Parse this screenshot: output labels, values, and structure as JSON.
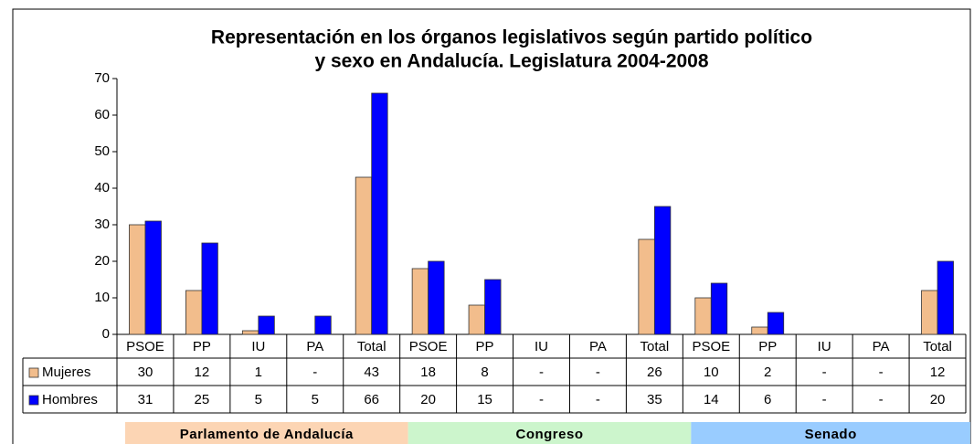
{
  "chart_data": {
    "type": "bar",
    "title": [
      "Representación en los órganos legislativos según partido político",
      "y sexo en Andalucía. Legislatura 2004-2008"
    ],
    "categories": [
      "PSOE",
      "PP",
      "IU",
      "PA",
      "Total",
      "PSOE",
      "PP",
      "IU",
      "PA",
      "Total",
      "PSOE",
      "PP",
      "IU",
      "PA",
      "Total"
    ],
    "series": [
      {
        "name": "Mujeres",
        "color": "#f2bd8c",
        "values": [
          30,
          12,
          1,
          null,
          43,
          18,
          8,
          null,
          null,
          26,
          10,
          2,
          null,
          null,
          12
        ],
        "value_labels": [
          null,
          null,
          null,
          "-",
          null,
          null,
          null,
          "-",
          "-",
          null,
          null,
          null,
          "-",
          "-",
          null
        ]
      },
      {
        "name": "Hombres",
        "color": "#0000ff",
        "values": [
          31,
          25,
          5,
          5,
          66,
          20,
          15,
          null,
          null,
          35,
          14,
          6,
          null,
          null,
          20
        ],
        "value_labels": [
          null,
          null,
          null,
          null,
          null,
          null,
          null,
          "-",
          "-",
          null,
          null,
          null,
          "-",
          "-",
          null
        ]
      }
    ],
    "groups": [
      {
        "label": "Parlamento de Andalucía",
        "color": "#fcd5b4",
        "span": 5
      },
      {
        "label": "Congreso",
        "color": "#ccf5cc",
        "span": 5
      },
      {
        "label": "Senado",
        "color": "#99ccff",
        "span": 5
      }
    ],
    "ylim": [
      0,
      70
    ],
    "yticks": [
      0,
      10,
      20,
      30,
      40,
      50,
      60,
      70
    ],
    "grid": false
  }
}
